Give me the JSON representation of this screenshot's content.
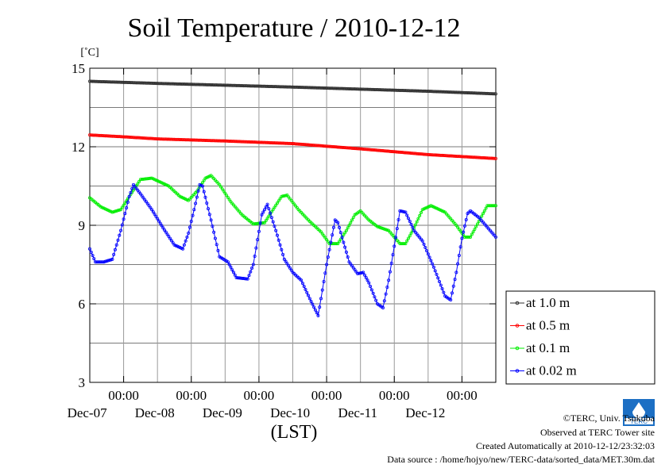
{
  "chart_data": {
    "type": "line",
    "title": "Soil Temperature / 2010-12-12",
    "ylabel": "[˚C]",
    "xlabel": "(LST)",
    "ylim": [
      3,
      15
    ],
    "yticks": [
      "3",
      "6",
      "9",
      "12",
      "15"
    ],
    "xlim_hours": [
      0,
      144
    ],
    "xticks": [
      {
        "time": "00:00",
        "date": "Dec-07"
      },
      {
        "time": "00:00",
        "date": "Dec-08"
      },
      {
        "time": "00:00",
        "date": "Dec-09"
      },
      {
        "time": "00:00",
        "date": "Dec-10"
      },
      {
        "time": "00:00",
        "date": "Dec-11"
      },
      {
        "time": "00:00",
        "date": "Dec-12"
      }
    ],
    "grid": true,
    "legend_position": "right-bottom",
    "series": [
      {
        "name": "at 1.0 m",
        "color": "#303030",
        "points": [
          [
            0,
            14.5
          ],
          [
            24,
            14.42
          ],
          [
            48,
            14.35
          ],
          [
            72,
            14.28
          ],
          [
            96,
            14.2
          ],
          [
            120,
            14.12
          ],
          [
            144,
            14.02
          ]
        ]
      },
      {
        "name": "at 0.5 m",
        "color": "#ff0000",
        "points": [
          [
            0,
            12.45
          ],
          [
            12,
            12.38
          ],
          [
            24,
            12.3
          ],
          [
            48,
            12.22
          ],
          [
            72,
            12.12
          ],
          [
            96,
            11.92
          ],
          [
            120,
            11.7
          ],
          [
            144,
            11.55
          ]
        ]
      },
      {
        "name": "at 0.1 m",
        "color": "#00ee00",
        "points": [
          [
            0,
            10.05
          ],
          [
            4,
            9.7
          ],
          [
            8,
            9.5
          ],
          [
            11,
            9.6
          ],
          [
            14,
            10.1
          ],
          [
            18,
            10.75
          ],
          [
            22,
            10.8
          ],
          [
            28,
            10.5
          ],
          [
            32,
            10.1
          ],
          [
            35,
            9.95
          ],
          [
            38,
            10.3
          ],
          [
            41,
            10.8
          ],
          [
            43,
            10.9
          ],
          [
            46,
            10.55
          ],
          [
            50,
            9.9
          ],
          [
            54,
            9.4
          ],
          [
            58,
            9.05
          ],
          [
            62,
            9.1
          ],
          [
            65,
            9.6
          ],
          [
            68,
            10.1
          ],
          [
            70,
            10.15
          ],
          [
            74,
            9.6
          ],
          [
            78,
            9.15
          ],
          [
            82,
            8.75
          ],
          [
            85,
            8.3
          ],
          [
            88,
            8.3
          ],
          [
            91,
            8.8
          ],
          [
            94,
            9.4
          ],
          [
            96,
            9.55
          ],
          [
            99,
            9.2
          ],
          [
            102,
            8.95
          ],
          [
            106,
            8.8
          ],
          [
            110,
            8.3
          ],
          [
            112,
            8.3
          ],
          [
            115,
            8.9
          ],
          [
            118,
            9.6
          ],
          [
            121,
            9.75
          ],
          [
            126,
            9.5
          ],
          [
            130,
            9.0
          ],
          [
            133,
            8.55
          ],
          [
            135,
            8.55
          ],
          [
            138,
            9.15
          ],
          [
            141,
            9.75
          ],
          [
            144,
            9.75
          ]
        ]
      },
      {
        "name": "at 0.02 m",
        "color": "#0000ff",
        "points": [
          [
            0,
            8.1
          ],
          [
            2,
            7.6
          ],
          [
            5,
            7.6
          ],
          [
            8,
            7.7
          ],
          [
            11,
            8.8
          ],
          [
            14,
            10.1
          ],
          [
            15.5,
            10.55
          ],
          [
            18,
            10.2
          ],
          [
            22,
            9.6
          ],
          [
            26,
            8.9
          ],
          [
            30,
            8.25
          ],
          [
            33,
            8.1
          ],
          [
            35,
            8.7
          ],
          [
            37,
            9.6
          ],
          [
            39,
            10.55
          ],
          [
            40,
            10.5
          ],
          [
            43,
            9.2
          ],
          [
            46,
            7.8
          ],
          [
            49,
            7.6
          ],
          [
            52,
            7.0
          ],
          [
            56,
            6.95
          ],
          [
            58,
            7.5
          ],
          [
            61,
            9.4
          ],
          [
            63,
            9.8
          ],
          [
            66,
            8.8
          ],
          [
            69,
            7.7
          ],
          [
            72,
            7.2
          ],
          [
            75,
            6.9
          ],
          [
            78,
            6.2
          ],
          [
            81,
            5.55
          ],
          [
            84,
            7.5
          ],
          [
            87,
            9.2
          ],
          [
            88,
            9.1
          ],
          [
            92,
            7.6
          ],
          [
            95,
            7.15
          ],
          [
            97,
            7.2
          ],
          [
            99,
            6.8
          ],
          [
            102,
            6.0
          ],
          [
            104,
            5.85
          ],
          [
            106,
            6.9
          ],
          [
            108,
            8.2
          ],
          [
            110,
            9.55
          ],
          [
            112,
            9.5
          ],
          [
            115,
            8.8
          ],
          [
            118,
            8.4
          ],
          [
            122,
            7.4
          ],
          [
            126,
            6.3
          ],
          [
            128,
            6.15
          ],
          [
            130,
            7.2
          ],
          [
            132,
            8.5
          ],
          [
            134,
            9.45
          ],
          [
            135,
            9.55
          ],
          [
            138,
            9.3
          ],
          [
            142,
            8.8
          ],
          [
            144,
            8.55
          ]
        ]
      }
    ]
  },
  "footer": {
    "copyright": "©TERC, Univ. Tsukuba",
    "observed": "Observed at TERC Tower site",
    "created": "Created Automatically at 2010-12-12/23:32:03",
    "source": "Data source : /home/hojyo/new/TERC-data/sorted_data/MET.30m.dat",
    "logo_text": "TERC"
  }
}
